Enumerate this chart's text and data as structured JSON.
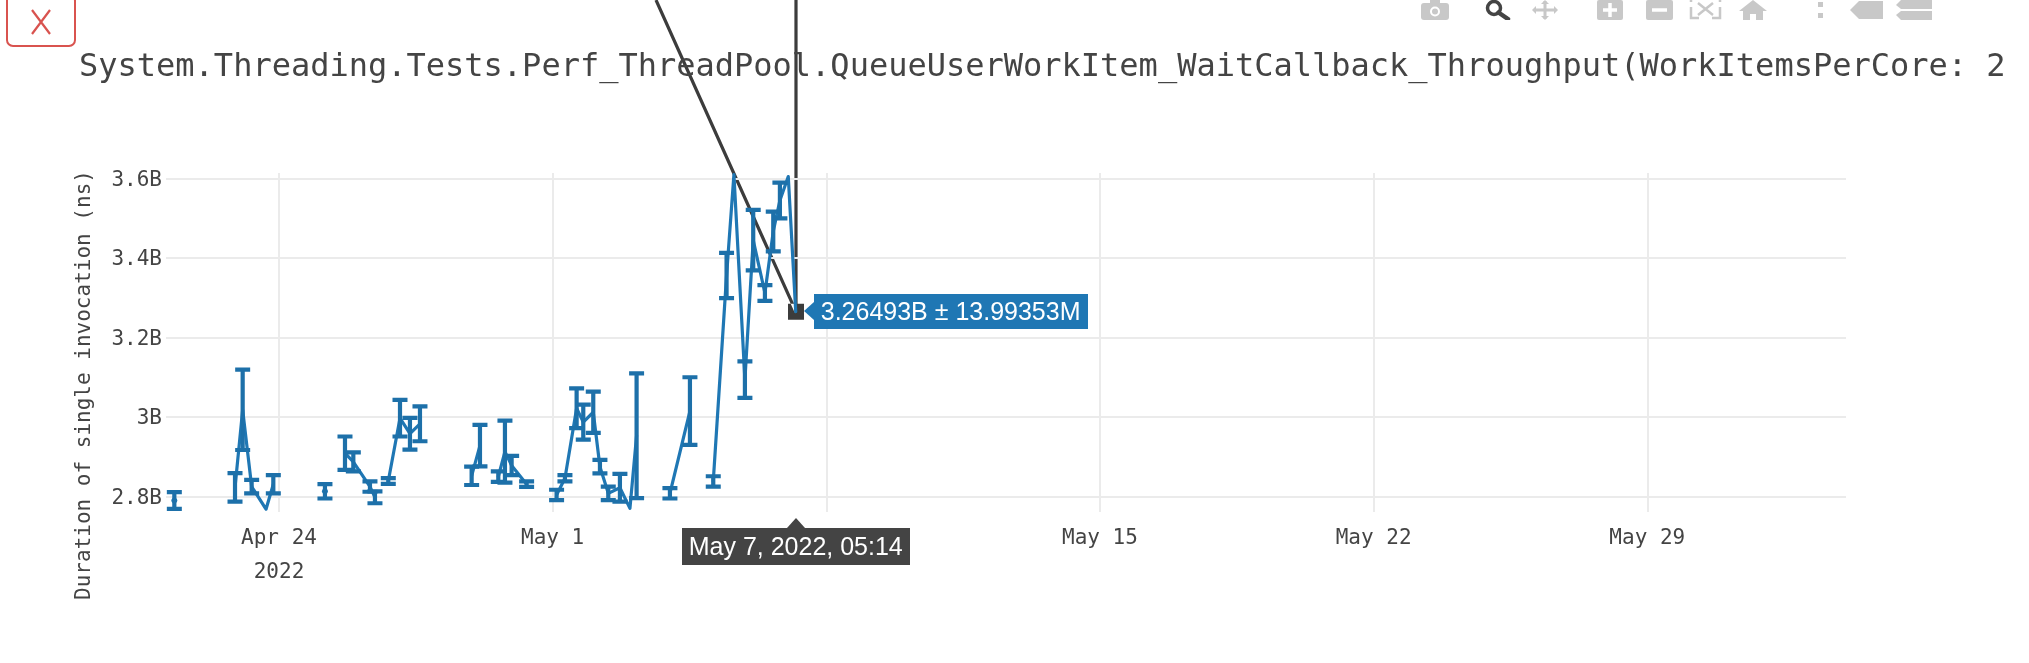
{
  "chart_data": {
    "type": "line",
    "title": "System.Threading.Tests.Perf_ThreadPool.QueueUserWorkItem_WaitCallback_Throughput(WorkItemsPerCore: 2",
    "ylabel": "Duration of single invocation (ns)",
    "x": [
      "2022-04-21T07:45",
      "2022-04-21T20:27",
      "2022-04-22T21:00",
      "2022-04-23T01:42",
      "2022-04-23T07:13",
      "2022-04-23T16:02",
      "2022-04-23T20:31",
      "2022-04-24T11:15",
      "2022-04-24T21:04",
      "2022-04-25T04:13",
      "2022-04-25T10:22",
      "2022-04-25T16:31",
      "2022-04-25T21:38",
      "2022-04-26T07:51",
      "2022-04-26T10:55",
      "2022-04-26T14:24",
      "2022-04-26T19:06",
      "2022-04-27T02:17",
      "2022-04-27T08:24",
      "2022-04-27T14:33",
      "2022-04-28T14:05",
      "2022-04-28T22:16",
      "2022-04-29T03:23",
      "2022-04-29T09:55",
      "2022-04-29T14:38",
      "2022-04-29T18:43",
      "2022-04-29T22:49",
      "2022-04-30T08:01",
      "2022-04-30T15:11",
      "2022-05-01T02:25",
      "2022-05-01T07:33",
      "2022-05-01T14:43",
      "2022-05-01T18:48",
      "2022-05-02T00:56",
      "2022-05-02T05:02",
      "2022-05-02T10:09",
      "2022-05-02T17:18",
      "2022-05-02T23:27",
      "2022-05-03T03:32",
      "2022-05-03T13:46",
      "2022-05-04T00:00",
      "2022-05-04T12:17",
      "2022-05-04T18:49",
      "2022-05-05T02:36",
      "2022-05-05T10:46",
      "2022-05-05T15:17",
      "2022-05-05T22:02",
      "2022-05-06T03:08",
      "2022-05-06T10:19",
      "2022-05-06T15:26",
      "2022-05-06T19:31",
      "2022-05-07T00:39",
      "2022-05-07T05:14"
    ],
    "series": [
      {
        "color": "#1f77b4",
        "values": [
          2790000000,
          null,
          2823000000,
          3018000000,
          2825000000,
          2768000000,
          2831000000,
          null,
          null,
          2813000000,
          null,
          2909000000,
          2887000000,
          2825000000,
          2798000000,
          null,
          2839000000,
          2997000000,
          2958000000,
          2983000000,
          null,
          2852000000,
          2928000000,
          null,
          2850000000,
          2913000000,
          2878000000,
          2831000000,
          null,
          2804000000,
          2846000000,
          3022000000,
          2987000000,
          3012000000,
          2875000000,
          2808000000,
          2822000000,
          2770000000,
          2953000000,
          null,
          2808000000,
          3015000000,
          null,
          2838000000,
          3356000000,
          3610000000,
          3094000000,
          3445000000,
          3312000000,
          3467000000,
          3545000000,
          3605000000,
          3264930000
        ],
        "errors": [
          21000000,
          null,
          36000000,
          101000000,
          17000000,
          null,
          23000000,
          null,
          null,
          18000000,
          null,
          42000000,
          24000000,
          13000000,
          15000000,
          null,
          7000000,
          46000000,
          40000000,
          44000000,
          null,
          23000000,
          52000000,
          null,
          13000000,
          78000000,
          24000000,
          7000000,
          null,
          13000000,
          8000000,
          50000000,
          44000000,
          52000000,
          17000000,
          17000000,
          35000000,
          null,
          157000000,
          null,
          13000000,
          85000000,
          null,
          13000000,
          57000000,
          null,
          46000000,
          76000000,
          20000000,
          50000000,
          45000000,
          null,
          null
        ]
      }
    ],
    "xlim": [
      "2022-04-21T02:38",
      "2022-06-03T02:00"
    ],
    "xticks": [
      {
        "value": "2022-04-24",
        "label": "Apr 24\n2022"
      },
      {
        "value": "2022-05-01",
        "label": "May 1"
      },
      {
        "value": "2022-05-08",
        "label": null
      },
      {
        "value": "2022-05-15",
        "label": "May 15"
      },
      {
        "value": "2022-05-22",
        "label": "May 22"
      },
      {
        "value": "2022-05-29",
        "label": "May 29"
      }
    ],
    "ylim": [
      2761000000,
      3614000000
    ],
    "yticks": [
      {
        "value": 2800000000,
        "label": "2.8B"
      },
      {
        "value": 3000000000,
        "label": "3B"
      },
      {
        "value": 3200000000,
        "label": "3.2B"
      },
      {
        "value": 3400000000,
        "label": "3.4B"
      },
      {
        "value": 3600000000,
        "label": "3.6B"
      }
    ],
    "grid": true,
    "marker": "none",
    "line_style": "solid",
    "annotations": [
      {
        "text": "3.26493B ± 13.99353M",
        "x": "2022-05-07T05:14",
        "y": 3264930000
      },
      "May 7, 2022, 05:14"
    ]
  }
}
